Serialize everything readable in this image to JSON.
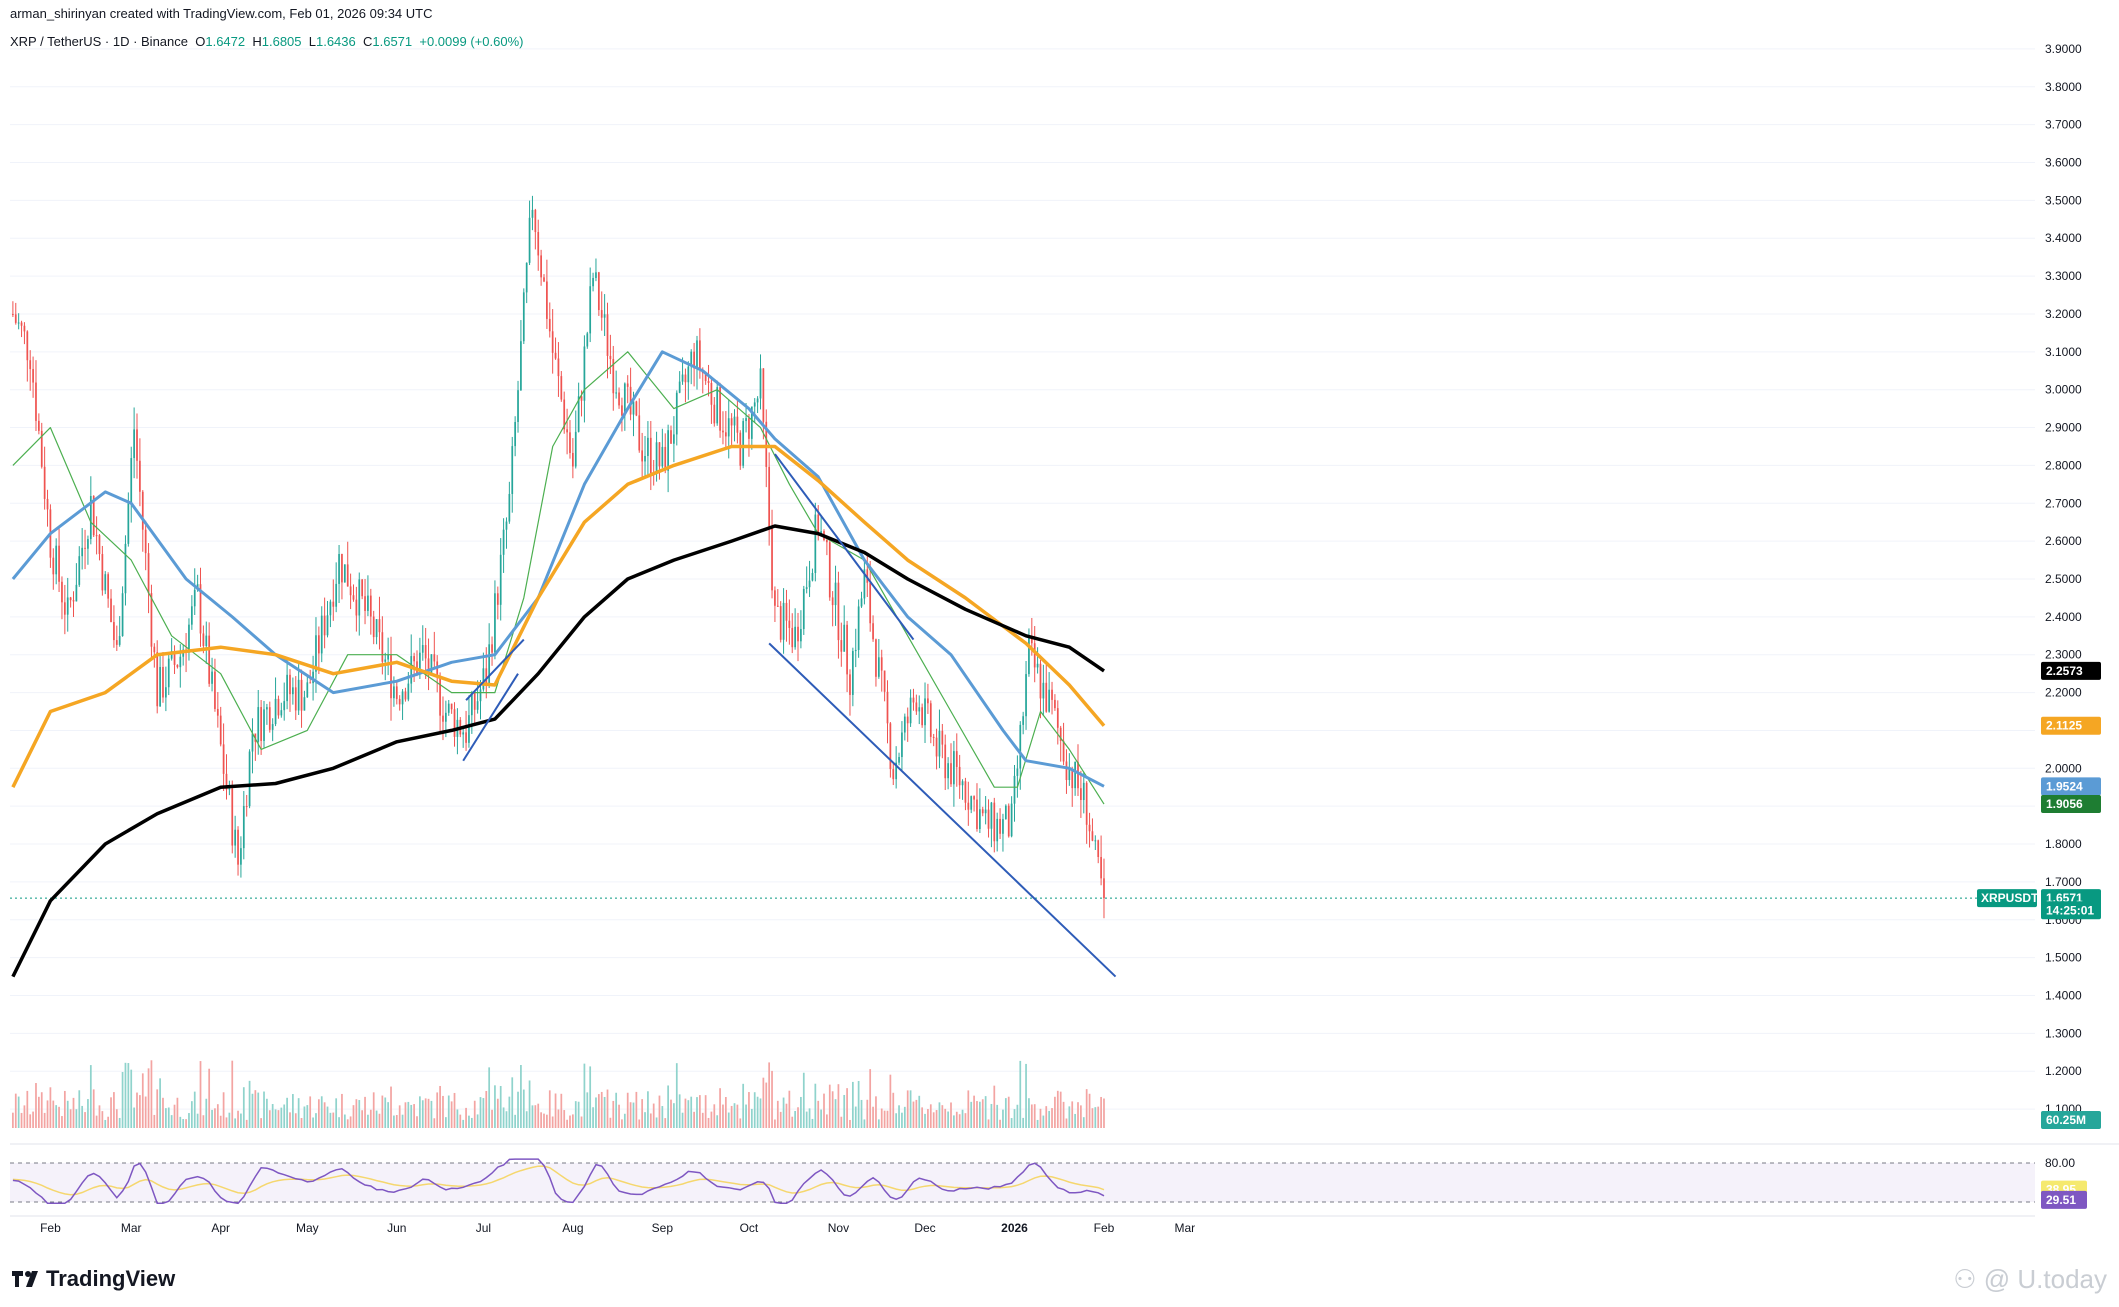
{
  "header": {
    "creator": "arman_shirinyan created with TradingView.com, Feb 01, 2026 09:34 UTC",
    "symbol": "XRP / TetherUS · 1D · Binance",
    "open_label": "O",
    "open": "1.6472",
    "high_label": "H",
    "high": "1.6805",
    "low_label": "L",
    "low": "1.6436",
    "close_label": "C",
    "close": "1.6571",
    "change": "+0.0099 (+0.60%)"
  },
  "brand": {
    "name": "TradingView",
    "icon": "tradingview-logo-icon"
  },
  "watermark": "U.today",
  "colors": {
    "up": "#26a69a",
    "down": "#ef5350",
    "up_vol": "#8fd3cc",
    "down_vol": "#f3a4a2",
    "ma20": "#4caf50",
    "ma50": "#5b9bd5",
    "ma100": "#f5a623",
    "ma200": "#000000",
    "channel": "#2e5cb8",
    "rsi": "#7e57c2",
    "rsi_ma": "#f5d76e"
  },
  "chart_data": {
    "type": "candlestick",
    "title": "XRP / TetherUS · 1D · Binance",
    "y_ticks": [
      "3.9000",
      "3.8000",
      "3.7000",
      "3.6000",
      "3.5000",
      "3.4000",
      "3.3000",
      "3.2000",
      "3.1000",
      "3.0000",
      "2.9000",
      "2.8000",
      "2.7000",
      "2.6000",
      "2.5000",
      "2.4000",
      "2.3000",
      "2.2000",
      "2.1000",
      "2.0000",
      "1.9000",
      "1.8000",
      "1.7000",
      "1.6000",
      "1.5000",
      "1.4000",
      "1.3000",
      "1.2000",
      "1.1000"
    ],
    "ylim": [
      1.05,
      3.95
    ],
    "x_ticks": [
      "Feb",
      "Mar",
      "Apr",
      "May",
      "Jun",
      "Jul",
      "Aug",
      "Sep",
      "Oct",
      "Nov",
      "Dec",
      "2026",
      "Feb",
      "Mar"
    ],
    "price_anchors": [
      {
        "date": "2025-01-19",
        "close": 3.2
      },
      {
        "date": "2025-01-25",
        "close": 3.1
      },
      {
        "date": "2025-02-01",
        "close": 2.6
      },
      {
        "date": "2025-02-07",
        "close": 2.4
      },
      {
        "date": "2025-02-15",
        "close": 2.7
      },
      {
        "date": "2025-02-24",
        "close": 2.3
      },
      {
        "date": "2025-03-02",
        "close": 2.9
      },
      {
        "date": "2025-03-10",
        "close": 2.2
      },
      {
        "date": "2025-03-18",
        "close": 2.3
      },
      {
        "date": "2025-03-24",
        "close": 2.45
      },
      {
        "date": "2025-03-31",
        "close": 2.1
      },
      {
        "date": "2025-04-07",
        "close": 1.75
      },
      {
        "date": "2025-04-12",
        "close": 2.1
      },
      {
        "date": "2025-04-22",
        "close": 2.2
      },
      {
        "date": "2025-05-01",
        "close": 2.2
      },
      {
        "date": "2025-05-12",
        "close": 2.55
      },
      {
        "date": "2025-05-22",
        "close": 2.4
      },
      {
        "date": "2025-06-01",
        "close": 2.2
      },
      {
        "date": "2025-06-10",
        "close": 2.3
      },
      {
        "date": "2025-06-18",
        "close": 2.15
      },
      {
        "date": "2025-06-25",
        "close": 2.1
      },
      {
        "date": "2025-07-02",
        "close": 2.25
      },
      {
        "date": "2025-07-10",
        "close": 2.7
      },
      {
        "date": "2025-07-18",
        "close": 3.5
      },
      {
        "date": "2025-07-25",
        "close": 3.1
      },
      {
        "date": "2025-08-01",
        "close": 2.8
      },
      {
        "date": "2025-08-08",
        "close": 3.3
      },
      {
        "date": "2025-08-15",
        "close": 3.05
      },
      {
        "date": "2025-08-25",
        "close": 2.85
      },
      {
        "date": "2025-09-01",
        "close": 2.8
      },
      {
        "date": "2025-09-12",
        "close": 3.1
      },
      {
        "date": "2025-09-20",
        "close": 2.95
      },
      {
        "date": "2025-09-28",
        "close": 2.85
      },
      {
        "date": "2025-10-05",
        "close": 3.0
      },
      {
        "date": "2025-10-10",
        "close": 2.4
      },
      {
        "date": "2025-10-17",
        "close": 2.35
      },
      {
        "date": "2025-10-25",
        "close": 2.65
      },
      {
        "date": "2025-11-05",
        "close": 2.25
      },
      {
        "date": "2025-11-10",
        "close": 2.5
      },
      {
        "date": "2025-11-20",
        "close": 2.0
      },
      {
        "date": "2025-11-28",
        "close": 2.2
      },
      {
        "date": "2025-12-05",
        "close": 2.05
      },
      {
        "date": "2025-12-15",
        "close": 1.95
      },
      {
        "date": "2025-12-22",
        "close": 1.85
      },
      {
        "date": "2025-12-31",
        "close": 1.85
      },
      {
        "date": "2026-01-06",
        "close": 2.3
      },
      {
        "date": "2026-01-14",
        "close": 2.15
      },
      {
        "date": "2026-01-20",
        "close": 2.0
      },
      {
        "date": "2026-01-26",
        "close": 1.9
      },
      {
        "date": "2026-01-29",
        "close": 1.75
      },
      {
        "date": "2026-02-01",
        "close": 1.6571
      }
    ],
    "moving_averages": [
      {
        "name": "MA 20",
        "anchors": [
          [
            "2025-01-19",
            2.8
          ],
          [
            "2025-02-01",
            2.9
          ],
          [
            "2025-02-15",
            2.65
          ],
          [
            "2025-03-01",
            2.55
          ],
          [
            "2025-03-15",
            2.35
          ],
          [
            "2025-04-01",
            2.25
          ],
          [
            "2025-04-15",
            2.05
          ],
          [
            "2025-05-01",
            2.1
          ],
          [
            "2025-05-15",
            2.3
          ],
          [
            "2025-06-01",
            2.3
          ],
          [
            "2025-06-20",
            2.2
          ],
          [
            "2025-07-05",
            2.2
          ],
          [
            "2025-07-15",
            2.45
          ],
          [
            "2025-07-25",
            2.85
          ],
          [
            "2025-08-05",
            3.0
          ],
          [
            "2025-08-20",
            3.1
          ],
          [
            "2025-09-05",
            2.95
          ],
          [
            "2025-09-20",
            3.0
          ],
          [
            "2025-10-05",
            2.9
          ],
          [
            "2025-10-15",
            2.75
          ],
          [
            "2025-10-25",
            2.62
          ],
          [
            "2025-11-10",
            2.55
          ],
          [
            "2025-11-25",
            2.35
          ],
          [
            "2025-12-10",
            2.15
          ],
          [
            "2025-12-25",
            1.95
          ],
          [
            "2026-01-02",
            1.95
          ],
          [
            "2026-01-10",
            2.15
          ],
          [
            "2026-01-20",
            2.05
          ],
          [
            "2026-02-01",
            1.9056
          ]
        ]
      },
      {
        "name": "MA 50",
        "anchors": [
          [
            "2025-01-19",
            2.5
          ],
          [
            "2025-02-01",
            2.62
          ],
          [
            "2025-02-20",
            2.73
          ],
          [
            "2025-03-01",
            2.7
          ],
          [
            "2025-03-20",
            2.5
          ],
          [
            "2025-04-05",
            2.4
          ],
          [
            "2025-04-20",
            2.3
          ],
          [
            "2025-05-10",
            2.2
          ],
          [
            "2025-06-01",
            2.23
          ],
          [
            "2025-06-20",
            2.28
          ],
          [
            "2025-07-05",
            2.3
          ],
          [
            "2025-07-20",
            2.45
          ],
          [
            "2025-08-05",
            2.75
          ],
          [
            "2025-08-20",
            2.95
          ],
          [
            "2025-09-01",
            3.1
          ],
          [
            "2025-09-15",
            3.05
          ],
          [
            "2025-10-01",
            2.95
          ],
          [
            "2025-10-10",
            2.87
          ],
          [
            "2025-10-25",
            2.77
          ],
          [
            "2025-11-10",
            2.55
          ],
          [
            "2025-11-25",
            2.4
          ],
          [
            "2025-12-10",
            2.3
          ],
          [
            "2025-12-28",
            2.1
          ],
          [
            "2026-01-05",
            2.02
          ],
          [
            "2026-01-20",
            2.0
          ],
          [
            "2026-02-01",
            1.9524
          ]
        ]
      },
      {
        "name": "MA 100",
        "anchors": [
          [
            "2025-01-19",
            1.95
          ],
          [
            "2025-02-01",
            2.15
          ],
          [
            "2025-02-20",
            2.2
          ],
          [
            "2025-03-10",
            2.3
          ],
          [
            "2025-04-01",
            2.32
          ],
          [
            "2025-04-20",
            2.3
          ],
          [
            "2025-05-10",
            2.25
          ],
          [
            "2025-06-01",
            2.28
          ],
          [
            "2025-06-20",
            2.23
          ],
          [
            "2025-07-05",
            2.22
          ],
          [
            "2025-07-20",
            2.45
          ],
          [
            "2025-08-05",
            2.65
          ],
          [
            "2025-08-20",
            2.75
          ],
          [
            "2025-09-05",
            2.8
          ],
          [
            "2025-09-25",
            2.85
          ],
          [
            "2025-10-10",
            2.85
          ],
          [
            "2025-10-25",
            2.76
          ],
          [
            "2025-11-10",
            2.65
          ],
          [
            "2025-11-25",
            2.55
          ],
          [
            "2025-12-15",
            2.45
          ],
          [
            "2026-01-05",
            2.33
          ],
          [
            "2026-01-20",
            2.22
          ],
          [
            "2026-02-01",
            2.1125
          ]
        ]
      },
      {
        "name": "MA 200",
        "anchors": [
          [
            "2025-01-19",
            1.45
          ],
          [
            "2025-02-01",
            1.65
          ],
          [
            "2025-02-20",
            1.8
          ],
          [
            "2025-03-10",
            1.88
          ],
          [
            "2025-04-01",
            1.95
          ],
          [
            "2025-04-20",
            1.96
          ],
          [
            "2025-05-10",
            2.0
          ],
          [
            "2025-06-01",
            2.07
          ],
          [
            "2025-06-20",
            2.1
          ],
          [
            "2025-07-05",
            2.13
          ],
          [
            "2025-07-20",
            2.25
          ],
          [
            "2025-08-05",
            2.4
          ],
          [
            "2025-08-20",
            2.5
          ],
          [
            "2025-09-05",
            2.55
          ],
          [
            "2025-09-25",
            2.6
          ],
          [
            "2025-10-10",
            2.64
          ],
          [
            "2025-10-25",
            2.62
          ],
          [
            "2025-11-10",
            2.57
          ],
          [
            "2025-11-25",
            2.5
          ],
          [
            "2025-12-15",
            2.42
          ],
          [
            "2026-01-05",
            2.35
          ],
          [
            "2026-01-20",
            2.32
          ],
          [
            "2026-02-01",
            2.2573
          ]
        ]
      }
    ],
    "trendlines": [
      {
        "name": "channel-upper",
        "from": [
          "2025-10-10",
          2.83
        ],
        "to": [
          "2025-11-27",
          2.34
        ]
      },
      {
        "name": "channel-lower",
        "from": [
          "2025-10-08",
          2.33
        ],
        "to": [
          "2026-02-05",
          1.45
        ]
      },
      {
        "name": "july-upper",
        "from": [
          "2025-06-25",
          2.18
        ],
        "to": [
          "2025-07-15",
          2.34
        ]
      },
      {
        "name": "july-lower",
        "from": [
          "2025-06-24",
          2.02
        ],
        "to": [
          "2025-07-13",
          2.25
        ]
      }
    ],
    "price_tags": [
      {
        "label": "",
        "value": "2.2573",
        "color": "#000000",
        "price": 2.2573
      },
      {
        "label": "",
        "value": "2.1125",
        "color": "#f5a623",
        "price": 2.1125
      },
      {
        "label": "",
        "value": "1.9524",
        "color": "#5b9bd5",
        "price": 1.9524
      },
      {
        "label": "",
        "value": "1.9056",
        "color": "#1e7d32",
        "price": 1.9056
      },
      {
        "label": "XRPUSDT",
        "value": "1.6571",
        "color": "#089981",
        "price": 1.6571
      },
      {
        "label": "",
        "value": "14:25:01",
        "color": "#089981",
        "price": 1.625
      }
    ],
    "volume": {
      "last_label": "60.25M"
    },
    "rsi": {
      "levels": [
        "80.00"
      ],
      "value": "29.51",
      "ma_value": "38.95",
      "upper": 80,
      "lower": 20,
      "last": 29.51,
      "ma_last": 38.95
    }
  }
}
